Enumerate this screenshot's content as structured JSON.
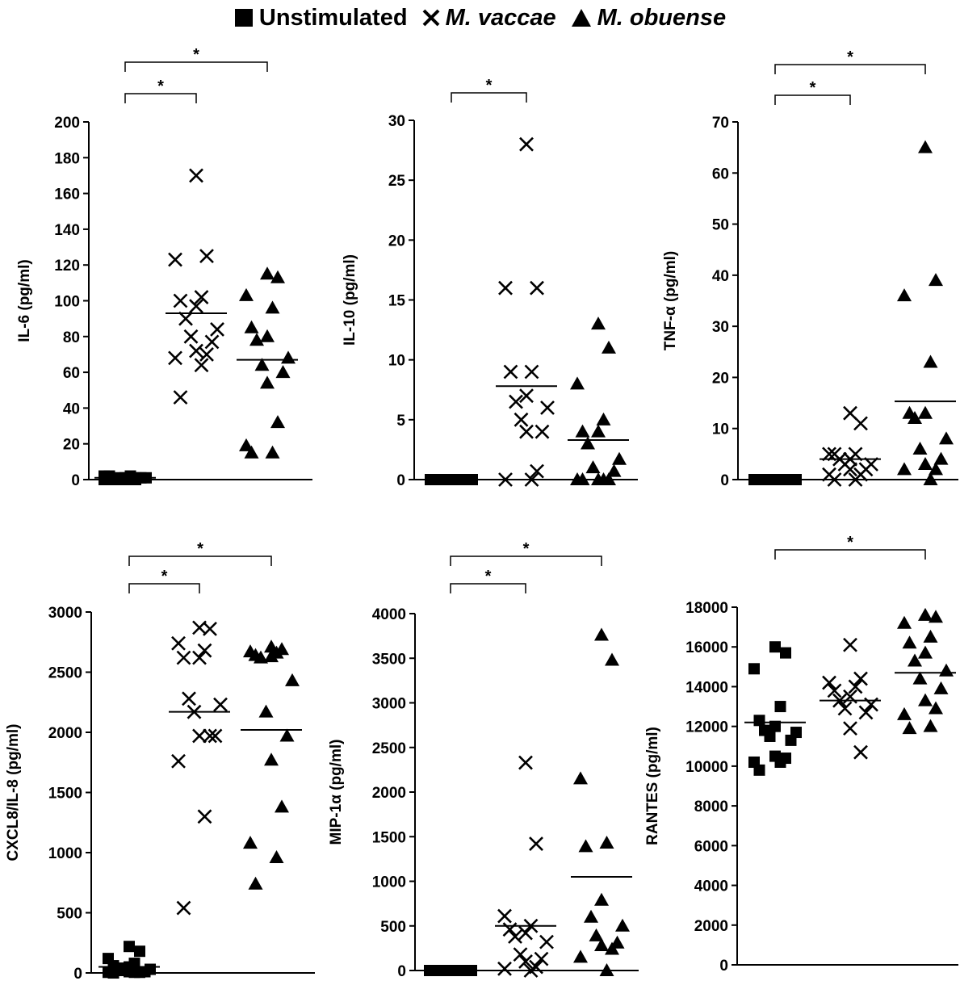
{
  "legend": {
    "items": [
      {
        "symbol": "square",
        "label": "Unstimulated",
        "italic": false
      },
      {
        "symbol": "x",
        "label": "M. vaccae",
        "italic": true
      },
      {
        "symbol": "triangle",
        "label": "M. obuense",
        "italic": true
      }
    ]
  },
  "colors": {
    "marker": "#000000",
    "axis": "#000000",
    "background": "#ffffff"
  },
  "chart_data": [
    {
      "type": "scatter",
      "ylabel": "IL-6 (pg/ml)",
      "ylim": [
        0,
        200
      ],
      "yticks": [
        0,
        20,
        40,
        60,
        80,
        100,
        120,
        140,
        160,
        180,
        200
      ],
      "groups": [
        {
          "name": "Unstimulated",
          "marker": "square",
          "mean": 1,
          "values": [
            0,
            0,
            0,
            0,
            0,
            0,
            0,
            1,
            1,
            1,
            1,
            1,
            2,
            2,
            2
          ]
        },
        {
          "name": "M. vaccae",
          "marker": "x",
          "mean": 93,
          "values": [
            170,
            125,
            123,
            102,
            100,
            97,
            90,
            84,
            80,
            77,
            72,
            70,
            68,
            64,
            46
          ]
        },
        {
          "name": "M. obuense",
          "marker": "triangle",
          "mean": 67,
          "values": [
            115,
            113,
            103,
            96,
            85,
            80,
            78,
            68,
            64,
            60,
            54,
            32,
            19,
            15,
            15
          ]
        }
      ],
      "significance": [
        {
          "pair": [
            "Unstimulated",
            "M. vaccae"
          ],
          "label": "*"
        },
        {
          "pair": [
            "Unstimulated",
            "M. obuense"
          ],
          "label": "*"
        }
      ]
    },
    {
      "type": "scatter",
      "ylabel": "IL-10 (pg/ml)",
      "ylim": [
        0,
        30
      ],
      "yticks": [
        0,
        5,
        10,
        15,
        20,
        25,
        30
      ],
      "groups": [
        {
          "name": "Unstimulated",
          "marker": "square",
          "mean": 0,
          "values": [
            0,
            0,
            0,
            0,
            0,
            0,
            0,
            0,
            0,
            0,
            0,
            0,
            0,
            0,
            0
          ]
        },
        {
          "name": "M. vaccae",
          "marker": "x",
          "mean": 7.8,
          "values": [
            28,
            16,
            16,
            9,
            9,
            7,
            6.5,
            6,
            5,
            4,
            4,
            0.7,
            0,
            0
          ]
        },
        {
          "name": "M. obuense",
          "marker": "triangle",
          "mean": 3.3,
          "values": [
            13,
            11,
            8,
            5,
            4,
            4,
            3,
            1.7,
            1,
            0.7,
            0,
            0,
            0,
            0,
            0
          ]
        }
      ],
      "significance": [
        {
          "pair": [
            "Unstimulated",
            "M. vaccae"
          ],
          "label": "*"
        }
      ]
    },
    {
      "type": "scatter",
      "ylabel": "TNF-α (pg/ml)",
      "ylim": [
        0,
        70
      ],
      "yticks": [
        0,
        10,
        20,
        30,
        40,
        50,
        60,
        70
      ],
      "groups": [
        {
          "name": "Unstimulated",
          "marker": "square",
          "mean": 0,
          "values": [
            0,
            0,
            0,
            0,
            0,
            0,
            0,
            0,
            0,
            0,
            0,
            0,
            0,
            0,
            0
          ]
        },
        {
          "name": "M. vaccae",
          "marker": "x",
          "mean": 4,
          "values": [
            13,
            11,
            5,
            5,
            5,
            4,
            4,
            3,
            3,
            2,
            2,
            1,
            1,
            0,
            0
          ]
        },
        {
          "name": "M. obuense",
          "marker": "triangle",
          "mean": 15.3,
          "values": [
            65,
            39,
            36,
            23,
            13,
            13,
            12,
            8,
            6,
            4,
            3,
            2,
            2,
            0
          ]
        }
      ],
      "significance": [
        {
          "pair": [
            "Unstimulated",
            "M. vaccae"
          ],
          "label": "*"
        },
        {
          "pair": [
            "Unstimulated",
            "M. obuense"
          ],
          "label": "*"
        }
      ]
    },
    {
      "type": "scatter",
      "ylabel": "CXCL8/IL-8 (pg/ml)",
      "ylim": [
        0,
        3000
      ],
      "yticks": [
        0,
        500,
        1000,
        1500,
        2000,
        2500,
        3000
      ],
      "groups": [
        {
          "name": "Unstimulated",
          "marker": "square",
          "mean": 50,
          "values": [
            220,
            180,
            120,
            80,
            60,
            50,
            40,
            30,
            20,
            10,
            10,
            5,
            5,
            5,
            0
          ]
        },
        {
          "name": "M. vaccae",
          "marker": "x",
          "mean": 2170,
          "values": [
            2870,
            2860,
            2740,
            2680,
            2620,
            2620,
            2280,
            2230,
            2170,
            1970,
            1970,
            1970,
            1760,
            1300,
            540
          ]
        },
        {
          "name": "M. obuense",
          "marker": "triangle",
          "mean": 2020,
          "values": [
            2710,
            2690,
            2670,
            2660,
            2640,
            2630,
            2620,
            2430,
            2170,
            1970,
            1770,
            1380,
            1080,
            960,
            740
          ]
        }
      ],
      "significance": [
        {
          "pair": [
            "Unstimulated",
            "M. vaccae"
          ],
          "label": "*"
        },
        {
          "pair": [
            "Unstimulated",
            "M. obuense"
          ],
          "label": "*"
        }
      ]
    },
    {
      "type": "scatter",
      "ylabel": "MIP-1α (pg/ml)",
      "ylim": [
        0,
        4000
      ],
      "yticks": [
        0,
        500,
        1000,
        1500,
        2000,
        2500,
        3000,
        3500,
        4000
      ],
      "groups": [
        {
          "name": "Unstimulated",
          "marker": "square",
          "mean": 0,
          "values": [
            0,
            0,
            0,
            0,
            0,
            0,
            0,
            0,
            0,
            0,
            0,
            0,
            0,
            0,
            0
          ]
        },
        {
          "name": "M. vaccae",
          "marker": "x",
          "mean": 500,
          "values": [
            2330,
            1420,
            610,
            500,
            460,
            420,
            380,
            320,
            180,
            130,
            100,
            40,
            20,
            0
          ]
        },
        {
          "name": "M. obuense",
          "marker": "triangle",
          "mean": 1050,
          "values": [
            3760,
            3480,
            2150,
            1430,
            1390,
            790,
            600,
            500,
            390,
            310,
            280,
            240,
            150,
            0
          ]
        }
      ],
      "significance": [
        {
          "pair": [
            "Unstimulated",
            "M. vaccae"
          ],
          "label": "*"
        },
        {
          "pair": [
            "Unstimulated",
            "M. obuense"
          ],
          "label": "*"
        }
      ]
    },
    {
      "type": "scatter",
      "ylabel": "RANTES (pg/ml)",
      "ylim": [
        0,
        18000
      ],
      "yticks": [
        0,
        2000,
        4000,
        6000,
        8000,
        10000,
        12000,
        14000,
        16000,
        18000
      ],
      "groups": [
        {
          "name": "Unstimulated",
          "marker": "square",
          "mean": 12200,
          "values": [
            16000,
            15700,
            14900,
            13000,
            12300,
            12000,
            11800,
            11700,
            11500,
            11300,
            10500,
            10400,
            10200,
            10200,
            9800
          ]
        },
        {
          "name": "M. vaccae",
          "marker": "x",
          "mean": 13300,
          "values": [
            16100,
            14400,
            14200,
            14000,
            13800,
            13500,
            13300,
            13100,
            12900,
            12700,
            11900,
            10700
          ]
        },
        {
          "name": "M. obuense",
          "marker": "triangle",
          "mean": 14700,
          "values": [
            17600,
            17500,
            17200,
            16500,
            16200,
            15700,
            15300,
            14800,
            14400,
            13900,
            13300,
            12900,
            12600,
            12000,
            11900
          ]
        }
      ],
      "significance": [
        {
          "pair": [
            "Unstimulated",
            "M. obuense"
          ],
          "label": "*"
        }
      ]
    }
  ]
}
